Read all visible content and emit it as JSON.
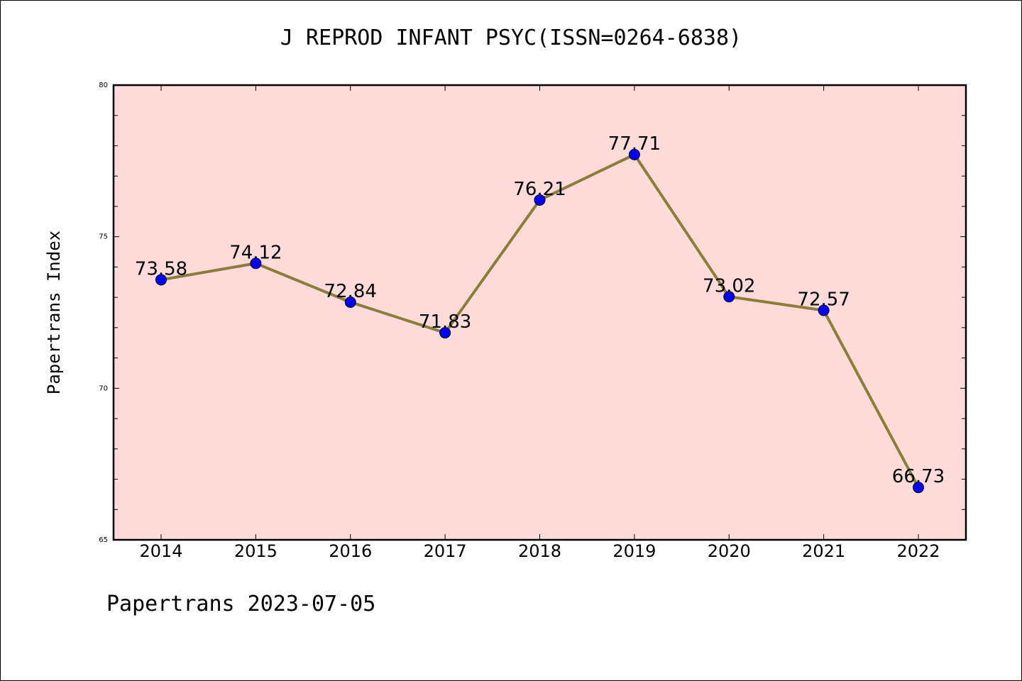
{
  "page": {
    "title": "J REPROD INFANT PSYC(ISSN=0264-6838)",
    "footer": "Papertrans 2023-07-05"
  },
  "colors": {
    "plot_background": "#fddbd8",
    "line": "#8b7d3a",
    "marker": "#0000ff",
    "axis": "#000000"
  },
  "chart_data": {
    "type": "line",
    "title": "J REPROD INFANT PSYC(ISSN=0264-6838)",
    "xlabel": "",
    "ylabel": "Papertrans Index",
    "categories": [
      "2014",
      "2015",
      "2016",
      "2017",
      "2018",
      "2019",
      "2020",
      "2021",
      "2022"
    ],
    "series": [
      {
        "values": [
          73.58,
          74.12,
          72.84,
          71.83,
          76.21,
          77.71,
          73.02,
          72.57,
          66.73
        ]
      }
    ],
    "data_labels": [
      "73.58",
      "74.12",
      "72.84",
      "71.83",
      "76.21",
      "77.71",
      "73.02",
      "72.57",
      "66.73"
    ],
    "ylim": [
      65,
      80
    ],
    "yticks": [
      65,
      70,
      75,
      80
    ],
    "y_minor_step": 1,
    "grid": false,
    "legend": "none"
  }
}
